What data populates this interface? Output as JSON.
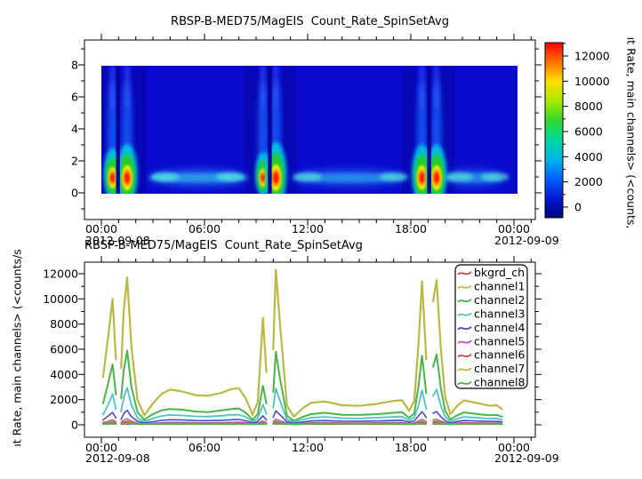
{
  "panel_top": {
    "title": "RBSP-B-MED75/MagEIS  Count_Rate_SpinSetAvg",
    "right_label": "ıt Rate, main channels> (<counts,",
    "y_axis": {
      "tick_labels": [
        "0",
        "2",
        "4",
        "6",
        "8"
      ]
    },
    "x_axis": {
      "tick_labels": [
        "00:00",
        "06:00",
        "12:00",
        "18:00",
        "00:00"
      ],
      "date_left": "2012-09-08",
      "date_right": "2012-09-09"
    },
    "colorbar": {
      "tick_labels": [
        "0",
        "2000",
        "4000",
        "6000",
        "8000",
        "10000",
        "12000"
      ]
    }
  },
  "panel_bottom": {
    "title": "RBSP-B-MED75/MagEIS  Count_Rate_SpinSetAvg",
    "left_label": "ıt Rate, main channels> (<counts/s",
    "y_axis": {
      "tick_labels": [
        "0",
        "2000",
        "4000",
        "6000",
        "8000",
        "10000",
        "12000"
      ]
    },
    "x_axis": {
      "tick_labels": [
        "00:00",
        "06:00",
        "12:00",
        "18:00",
        "00:00"
      ],
      "date_left": "2012-09-08",
      "date_right": "2012-09-09"
    },
    "legend": {
      "items": [
        {
          "label": "bkgrd_ch",
          "color": "#bf4b4b"
        },
        {
          "label": "channel1",
          "color": "#bcbc49"
        },
        {
          "label": "channel2",
          "color": "#49b649"
        },
        {
          "label": "channel3",
          "color": "#4cc4c4"
        },
        {
          "label": "channel4",
          "color": "#4c4cc8"
        },
        {
          "label": "channel5",
          "color": "#c44cc4"
        },
        {
          "label": "channel6",
          "color": "#c94848"
        },
        {
          "label": "channel7",
          "color": "#b9b944"
        },
        {
          "label": "channel8",
          "color": "#46b946"
        }
      ]
    }
  },
  "chart_data": [
    {
      "type": "heatmap",
      "title": "RBSP-B-MED75/MagEIS  Count_Rate_SpinSetAvg",
      "colorbar_label": "ıt Rate, main channels> (<counts,",
      "x_range": [
        "2012-09-08 00:00",
        "2012-09-09 00:15"
      ],
      "x_tick_labels": [
        "00:00",
        "06:00",
        "12:00",
        "18:00",
        "00:00"
      ],
      "ylim": [
        0,
        8
      ],
      "y_ticks": [
        0,
        2,
        4,
        6,
        8
      ],
      "value_range": [
        0,
        12000
      ],
      "colorbar_ticks": [
        0,
        2000,
        4000,
        6000,
        8000,
        10000,
        12000
      ],
      "background_value_color": "#0a0ace",
      "gap_color": "#000096",
      "colormap_stops_bottom_to_top": [
        "#000080",
        "#0018d0",
        "#0060ff",
        "#00b4e8",
        "#00d8a0",
        "#30d830",
        "#a8e800",
        "#ffe000",
        "#ff7000",
        "#ff0000"
      ],
      "peaks": [
        {
          "t_hours": 0.65,
          "y": 1,
          "value": 10000
        },
        {
          "t_hours": 1.5,
          "y": 1,
          "value": 11700
        },
        {
          "t_hours": 9.4,
          "y": 1,
          "value": 8500
        },
        {
          "t_hours": 10.15,
          "y": 1,
          "value": 12300
        },
        {
          "t_hours": 18.65,
          "y": 1,
          "value": 11400
        },
        {
          "t_hours": 19.5,
          "y": 1,
          "value": 11500
        }
      ],
      "gaps_hours": [
        0.97,
        9.8,
        19.07
      ],
      "bands": [
        {
          "start": 2.7,
          "end": 8.6,
          "y": 1,
          "level": 2500,
          "bright": [
            3.7,
            7.5
          ]
        },
        {
          "start": 11.0,
          "end": 17.8,
          "y": 1,
          "level": 1800,
          "bright": [
            12.0,
            17.0
          ]
        },
        {
          "start": 19.9,
          "end": 23.4,
          "y": 1,
          "level": 1700,
          "bright": [
            20.8,
            22.9
          ]
        }
      ],
      "dim_columns": [
        [
          0.0,
          0.35
        ],
        [
          1.8,
          2.6
        ],
        [
          8.3,
          9.15
        ],
        [
          10.55,
          11.4
        ],
        [
          17.5,
          18.3
        ],
        [
          19.75,
          20.55
        ]
      ]
    },
    {
      "type": "line",
      "title": "RBSP-B-MED75/MagEIS  Count_Rate_SpinSetAvg",
      "ylabel": "ıt Rate, main channels> (<counts/s",
      "x_tick_labels": [
        "00:00",
        "06:00",
        "12:00",
        "18:00",
        "00:00"
      ],
      "x_dates": [
        "2012-09-08",
        "2012-09-09"
      ],
      "ylim": [
        -1000,
        13000
      ],
      "legend_position": "top-right",
      "x_hours": [
        0.1,
        0.4,
        0.65,
        0.85,
        0.97,
        1.15,
        1.3,
        1.5,
        1.75,
        2.1,
        2.5,
        3.0,
        3.5,
        4.0,
        4.7,
        5.5,
        6.2,
        7.0,
        7.6,
        8.0,
        8.4,
        8.8,
        9.1,
        9.4,
        9.6,
        9.8,
        10.0,
        10.15,
        10.4,
        10.8,
        11.2,
        11.7,
        12.2,
        13.0,
        14.0,
        15.0,
        16.0,
        17.0,
        17.5,
        17.9,
        18.2,
        18.45,
        18.65,
        18.9,
        19.07,
        19.3,
        19.5,
        19.75,
        20.0,
        20.3,
        20.7,
        21.1,
        21.6,
        22.1,
        22.6,
        23.0,
        23.3
      ],
      "series": [
        {
          "name": "bkgrd_ch",
          "color": "#bf4b4b",
          "width": 1.4,
          "values": [
            48,
            52,
            60,
            51,
            null,
            49,
            57,
            65,
            54,
            46,
            38,
            44,
            49,
            51,
            50,
            48,
            47,
            49,
            51,
            52,
            48,
            38,
            45,
            56,
            49,
            null,
            52,
            64,
            57,
            44,
            36,
            43,
            48,
            50,
            47,
            46,
            47,
            50,
            51,
            43,
            47,
            56,
            62,
            52,
            null,
            59,
            62,
            53,
            48,
            37,
            44,
            50,
            48,
            46,
            44,
            45,
            41
          ]
        },
        {
          "name": "channel1",
          "color": "#bcbc49",
          "width": 1.5,
          "values": [
            150,
            210,
            290,
            175,
            null,
            160,
            265,
            330,
            205,
            120,
            75,
            108,
            140,
            155,
            148,
            138,
            133,
            143,
            155,
            160,
            135,
            75,
            112,
            220,
            148,
            null,
            180,
            320,
            235,
            110,
            65,
            98,
            128,
            143,
            128,
            122,
            128,
            143,
            148,
            97,
            132,
            220,
            310,
            200,
            null,
            272,
            310,
            212,
            132,
            73,
            110,
            143,
            136,
            128,
            118,
            122,
            102
          ]
        },
        {
          "name": "channel2",
          "color": "#49b649",
          "width": 2,
          "values": [
            1700,
            3300,
            4800,
            2400,
            null,
            2100,
            4300,
            5900,
            3000,
            1000,
            400,
            850,
            1150,
            1250,
            1200,
            1050,
            1000,
            1150,
            1250,
            1300,
            950,
            400,
            850,
            3100,
            1700,
            null,
            2600,
            5800,
            3600,
            700,
            320,
            620,
            850,
            950,
            800,
            780,
            850,
            950,
            1000,
            550,
            900,
            3100,
            5500,
            2500,
            null,
            4600,
            5600,
            2900,
            1100,
            420,
            750,
            980,
            900,
            820,
            760,
            780,
            640
          ]
        },
        {
          "name": "channel3",
          "color": "#4cc4c4",
          "width": 1.8,
          "values": [
            800,
            1600,
            2450,
            1250,
            null,
            1050,
            2150,
            2950,
            1550,
            550,
            240,
            500,
            700,
            780,
            740,
            670,
            650,
            720,
            790,
            800,
            620,
            250,
            520,
            1600,
            850,
            null,
            1350,
            2900,
            1850,
            420,
            210,
            400,
            560,
            630,
            520,
            500,
            560,
            630,
            650,
            360,
            580,
            1550,
            2750,
            1250,
            null,
            2300,
            2800,
            1500,
            640,
            270,
            470,
            620,
            580,
            530,
            490,
            500,
            410
          ]
        },
        {
          "name": "channel4",
          "color": "#4c4cc8",
          "width": 1.6,
          "values": [
            380,
            700,
            980,
            540,
            null,
            430,
            880,
            1150,
            640,
            280,
            140,
            250,
            350,
            400,
            380,
            340,
            330,
            360,
            400,
            420,
            320,
            140,
            270,
            720,
            400,
            null,
            600,
            1100,
            780,
            230,
            120,
            220,
            300,
            340,
            290,
            275,
            300,
            340,
            360,
            210,
            320,
            700,
            1050,
            580,
            null,
            920,
            1050,
            640,
            320,
            150,
            260,
            340,
            320,
            290,
            270,
            280,
            230
          ]
        },
        {
          "name": "channel5",
          "color": "#c44cc4",
          "width": 1.4,
          "values": [
            190,
            290,
            400,
            250,
            null,
            205,
            360,
            480,
            290,
            150,
            85,
            130,
            180,
            200,
            192,
            178,
            172,
            185,
            200,
            210,
            170,
            85,
            140,
            300,
            185,
            null,
            250,
            450,
            320,
            135,
            75,
            120,
            160,
            180,
            158,
            150,
            160,
            180,
            190,
            115,
            165,
            300,
            440,
            270,
            null,
            385,
            440,
            295,
            165,
            90,
            138,
            180,
            168,
            158,
            148,
            152,
            125
          ]
        },
        {
          "name": "channel6",
          "color": "#c94848",
          "width": 1.4,
          "values": [
            95,
            140,
            210,
            125,
            null,
            102,
            185,
            250,
            148,
            80,
            48,
            70,
            95,
            105,
            100,
            93,
            90,
            97,
            105,
            110,
            90,
            48,
            74,
            160,
            98,
            null,
            128,
            240,
            170,
            72,
            42,
            64,
            85,
            95,
            84,
            80,
            85,
            95,
            100,
            62,
            88,
            160,
            230,
            145,
            null,
            205,
            230,
            152,
            88,
            47,
            70,
            93,
            89,
            84,
            77,
            80,
            66
          ]
        },
        {
          "name": "channel7",
          "color": "#b9b944",
          "width": 2.2,
          "values": [
            3800,
            7000,
            10000,
            5200,
            null,
            4500,
            9000,
            11700,
            6200,
            2000,
            750,
            1700,
            2450,
            2800,
            2650,
            2350,
            2300,
            2550,
            2850,
            2900,
            2100,
            800,
            1800,
            8500,
            4200,
            null,
            6000,
            12300,
            7800,
            1500,
            650,
            1300,
            1750,
            1850,
            1550,
            1500,
            1650,
            1900,
            1950,
            1100,
            1900,
            6500,
            11400,
            5200,
            null,
            9800,
            11500,
            6000,
            2200,
            850,
            1500,
            1950,
            1800,
            1650,
            1500,
            1550,
            1250
          ]
        },
        {
          "name": "channel8",
          "color": "#46b946",
          "width": 2,
          "values": [
            88,
            96,
            112,
            92,
            null,
            89,
            106,
            122,
            98,
            82,
            66,
            78,
            87,
            90,
            89,
            87,
            85,
            88,
            90,
            92,
            85,
            66,
            79,
            102,
            88,
            null,
            95,
            120,
            104,
            78,
            62,
            76,
            84,
            87,
            84,
            81,
            84,
            87,
            89,
            76,
            85,
            102,
            116,
            96,
            null,
            110,
            116,
            99,
            86,
            65,
            79,
            87,
            85,
            83,
            79,
            81,
            73
          ]
        }
      ]
    }
  ]
}
